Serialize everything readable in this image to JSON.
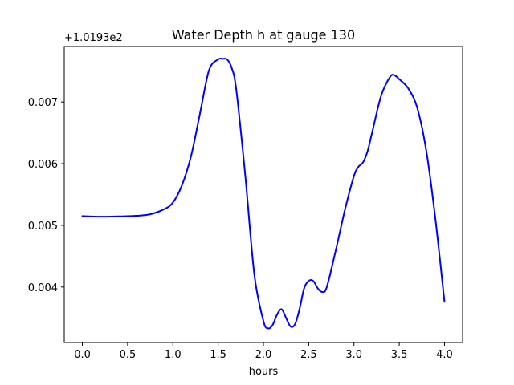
{
  "chart_data": {
    "type": "line",
    "title": "Water Depth h at gauge 130",
    "xlabel": "hours",
    "ylabel": "",
    "y_offset_label": "+1.0193e2",
    "xlim": [
      -0.2,
      4.2
    ],
    "ylim": [
      0.0031,
      0.0079
    ],
    "x_ticks": [
      0.0,
      0.5,
      1.0,
      1.5,
      2.0,
      2.5,
      3.0,
      3.5,
      4.0
    ],
    "x_tick_labels": [
      "0.0",
      "0.5",
      "1.0",
      "1.5",
      "2.0",
      "2.5",
      "3.0",
      "3.5",
      "4.0"
    ],
    "y_ticks": [
      0.004,
      0.005,
      0.006,
      0.007
    ],
    "y_tick_labels": [
      "0.004",
      "0.005",
      "0.006",
      "0.007"
    ],
    "grid": false,
    "series": [
      {
        "color": "#0000ff",
        "x": [
          0.0,
          0.2,
          0.4,
          0.6,
          0.75,
          0.9,
          1.0,
          1.1,
          1.2,
          1.3,
          1.4,
          1.5,
          1.55,
          1.6,
          1.65,
          1.7,
          1.8,
          1.9,
          2.0,
          2.05,
          2.1,
          2.15,
          2.2,
          2.25,
          2.3,
          2.35,
          2.4,
          2.45,
          2.5,
          2.55,
          2.6,
          2.65,
          2.7,
          2.8,
          2.9,
          3.0,
          3.05,
          3.1,
          3.15,
          3.2,
          3.3,
          3.4,
          3.45,
          3.5,
          3.6,
          3.7,
          3.8,
          3.9,
          4.0
        ],
        "y": [
          0.00515,
          0.00514,
          0.005145,
          0.005155,
          0.00518,
          0.00526,
          0.00537,
          0.00565,
          0.00612,
          0.00682,
          0.00752,
          0.00769,
          0.0077,
          0.00769,
          0.00755,
          0.0072,
          0.0058,
          0.0042,
          0.00345,
          0.00333,
          0.00338,
          0.00355,
          0.00364,
          0.0035,
          0.00336,
          0.0034,
          0.00365,
          0.00398,
          0.0041,
          0.0041,
          0.00398,
          0.00392,
          0.004,
          0.0046,
          0.00525,
          0.0058,
          0.00595,
          0.00602,
          0.0062,
          0.0065,
          0.0071,
          0.00741,
          0.00743,
          0.00737,
          0.00722,
          0.0069,
          0.0062,
          0.0051,
          0.00376
        ]
      }
    ]
  }
}
